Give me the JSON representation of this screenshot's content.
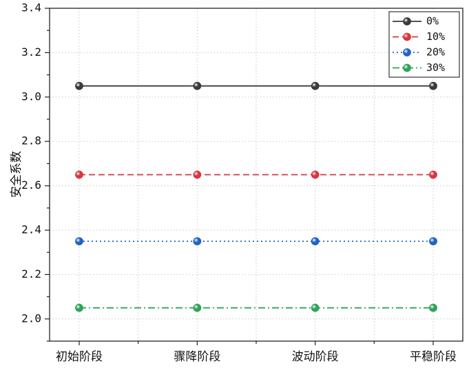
{
  "chart_data": {
    "type": "line",
    "categories": [
      "初始阶段",
      "骤降阶段",
      "波动阶段",
      "平稳阶段"
    ],
    "ylabel": "安全系数",
    "ylim": [
      1.9,
      3.4
    ],
    "yticks": [
      "2.0",
      "2.2",
      "2.4",
      "2.6",
      "2.8",
      "3.0",
      "3.2",
      "3.4"
    ],
    "grid": true,
    "legend_position": "top-right",
    "series": [
      {
        "name": "0%",
        "values": [
          3.05,
          3.05,
          3.05,
          3.05
        ],
        "color": "#3a3a3a",
        "dash": "solid"
      },
      {
        "name": "10%",
        "values": [
          2.65,
          2.65,
          2.65,
          2.65
        ],
        "color": "#d9363e",
        "dash": "dashed"
      },
      {
        "name": "20%",
        "values": [
          2.35,
          2.35,
          2.35,
          2.35
        ],
        "color": "#1f63c6",
        "dash": "dotted"
      },
      {
        "name": "30%",
        "values": [
          2.05,
          2.05,
          2.05,
          2.05
        ],
        "color": "#2ea35a",
        "dash": "dashdot"
      }
    ]
  }
}
